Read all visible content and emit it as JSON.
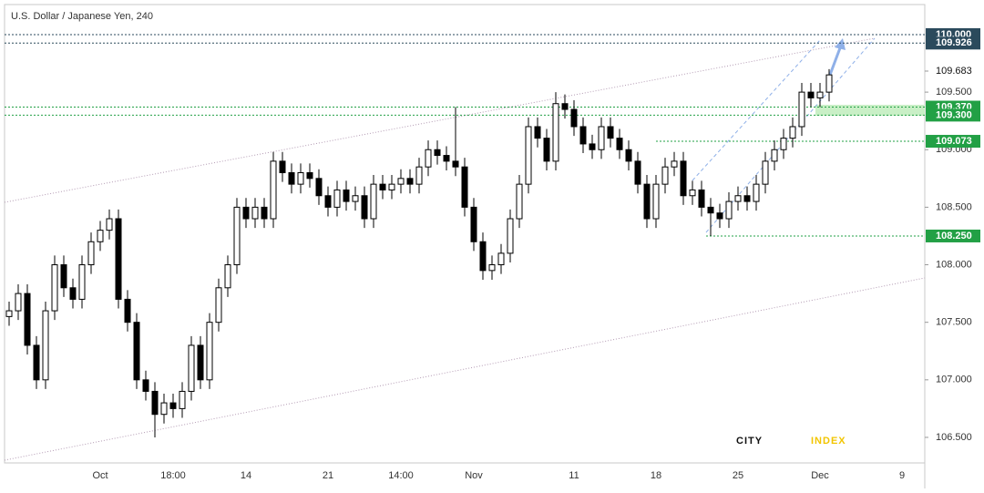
{
  "chart_data": {
    "type": "candlestick",
    "title": "U.S. Dollar / Japanese Yen, 240",
    "logo": {
      "left": "CITY",
      "right": "INDEX"
    },
    "categories": [
      null,
      null,
      null,
      null,
      null,
      null,
      null,
      null,
      null,
      null,
      "Oct",
      null,
      null,
      null,
      null,
      null,
      null,
      null,
      "18:00",
      null,
      null,
      null,
      null,
      null,
      null,
      null,
      "14",
      null,
      null,
      null,
      null,
      null,
      null,
      null,
      null,
      "21",
      null,
      null,
      null,
      null,
      null,
      null,
      null,
      "14:00",
      null,
      null,
      null,
      null,
      null,
      null,
      null,
      "Nov",
      null,
      null,
      null,
      null,
      null,
      null,
      null,
      null,
      null,
      null,
      "11",
      null,
      null,
      null,
      null,
      null,
      null,
      null,
      null,
      "18",
      null,
      null,
      null,
      null,
      null,
      null,
      null,
      null,
      "25",
      null,
      null,
      null,
      null,
      null,
      null,
      null,
      null,
      "Dec",
      null,
      null,
      null,
      null,
      null,
      null,
      null,
      null,
      "9",
      null,
      null
    ],
    "open": [
      107.55,
      107.6,
      107.75,
      107.3,
      107.0,
      107.6,
      108.0,
      107.8,
      107.7,
      108.0,
      108.2,
      108.3,
      108.4,
      107.7,
      107.5,
      107.0,
      106.9,
      106.7,
      106.8,
      106.75,
      106.9,
      107.3,
      107.0,
      107.5,
      107.8,
      108.0,
      108.5,
      108.4,
      108.5,
      108.4,
      108.9,
      108.8,
      108.7,
      108.8,
      108.75,
      108.6,
      108.5,
      108.65,
      108.55,
      108.6,
      108.4,
      108.7,
      108.65,
      108.7,
      108.75,
      108.7,
      108.85,
      109.0,
      108.95,
      108.9,
      108.85,
      108.5,
      108.2,
      107.95,
      108.0,
      108.1,
      108.4,
      108.7,
      109.2,
      109.1,
      108.9,
      109.4,
      109.35,
      109.2,
      109.05,
      109.0,
      109.2,
      109.1,
      109.0,
      108.9,
      108.7,
      108.4,
      108.7,
      108.85,
      108.9,
      108.6,
      108.65,
      108.5,
      108.45,
      108.4,
      108.55,
      108.6,
      108.55,
      108.7,
      108.9,
      109.0,
      109.1,
      109.2,
      109.5,
      109.45,
      109.5,
      null,
      null,
      null,
      null,
      null,
      null,
      null,
      null,
      null,
      null
    ],
    "high": [
      107.68,
      107.83,
      107.83,
      107.38,
      107.68,
      108.08,
      108.08,
      107.88,
      108.08,
      108.28,
      108.38,
      108.48,
      108.48,
      107.78,
      107.58,
      107.08,
      106.98,
      106.88,
      106.88,
      106.98,
      107.38,
      107.38,
      107.58,
      107.88,
      108.08,
      108.58,
      108.58,
      108.58,
      108.58,
      108.98,
      108.98,
      108.88,
      108.88,
      108.88,
      108.83,
      108.68,
      108.73,
      108.73,
      108.68,
      108.68,
      108.78,
      108.78,
      108.78,
      108.83,
      108.83,
      108.93,
      109.08,
      109.08,
      109.03,
      109.37,
      108.93,
      108.58,
      108.28,
      108.08,
      108.18,
      108.48,
      108.78,
      109.28,
      109.28,
      109.18,
      109.5,
      109.48,
      109.43,
      109.28,
      109.13,
      109.28,
      109.28,
      109.18,
      109.08,
      108.98,
      108.78,
      108.78,
      108.93,
      108.98,
      108.98,
      108.73,
      108.73,
      108.58,
      108.53,
      108.63,
      108.68,
      108.68,
      108.78,
      108.98,
      109.08,
      109.18,
      109.28,
      109.58,
      109.58,
      109.58,
      109.7,
      null,
      null,
      null,
      null,
      null,
      null,
      null,
      null,
      null,
      null
    ],
    "low": [
      107.47,
      107.52,
      107.22,
      106.92,
      106.92,
      107.52,
      107.72,
      107.62,
      107.62,
      107.92,
      108.12,
      108.22,
      107.62,
      107.42,
      106.92,
      106.82,
      106.5,
      106.62,
      106.67,
      106.67,
      106.82,
      106.92,
      106.92,
      107.42,
      107.72,
      107.92,
      108.32,
      108.32,
      108.32,
      108.32,
      108.72,
      108.62,
      108.62,
      108.67,
      108.52,
      108.42,
      108.42,
      108.47,
      108.47,
      108.32,
      108.32,
      108.57,
      108.57,
      108.62,
      108.62,
      108.62,
      108.77,
      108.87,
      108.82,
      108.77,
      108.42,
      108.12,
      107.87,
      107.87,
      107.92,
      108.02,
      108.32,
      108.62,
      109.02,
      108.82,
      108.82,
      109.27,
      109.12,
      108.97,
      108.92,
      108.92,
      109.02,
      108.92,
      108.82,
      108.62,
      108.32,
      108.32,
      108.62,
      108.77,
      108.52,
      108.52,
      108.42,
      108.25,
      108.32,
      108.32,
      108.47,
      108.47,
      108.47,
      108.62,
      108.82,
      108.92,
      109.02,
      109.12,
      109.37,
      109.37,
      109.42,
      null,
      null,
      null,
      null,
      null,
      null,
      null,
      null,
      null,
      null
    ],
    "close": [
      107.6,
      107.75,
      107.3,
      107.0,
      107.6,
      108.0,
      107.8,
      107.7,
      108.0,
      108.2,
      108.3,
      108.4,
      107.7,
      107.5,
      107.0,
      106.9,
      106.7,
      106.8,
      106.75,
      106.9,
      107.3,
      107.0,
      107.5,
      107.8,
      108.0,
      108.5,
      108.4,
      108.5,
      108.4,
      108.9,
      108.8,
      108.7,
      108.8,
      108.75,
      108.6,
      108.5,
      108.65,
      108.55,
      108.6,
      108.4,
      108.7,
      108.65,
      108.7,
      108.75,
      108.7,
      108.85,
      109.0,
      108.95,
      108.9,
      108.85,
      108.5,
      108.2,
      107.95,
      108.0,
      108.1,
      108.4,
      108.7,
      109.2,
      109.1,
      108.9,
      109.4,
      109.35,
      109.2,
      109.05,
      109.0,
      109.2,
      109.1,
      109.0,
      108.9,
      108.7,
      108.4,
      108.7,
      108.85,
      108.9,
      108.6,
      108.65,
      108.5,
      108.45,
      108.4,
      108.55,
      108.6,
      108.55,
      108.7,
      108.9,
      109.0,
      109.1,
      109.2,
      109.5,
      109.45,
      109.5,
      109.65,
      null,
      null,
      null,
      null,
      null,
      null,
      null,
      null,
      null,
      null
    ],
    "up_color": "#ffffff",
    "down_color": "#000000",
    "ylim": [
      106.278,
      110.261
    ],
    "yticks": [
      {
        "value": 106.5,
        "label": "106.500"
      },
      {
        "value": 107,
        "label": "107.000"
      },
      {
        "value": 107.5,
        "label": "107.500"
      },
      {
        "value": 108,
        "label": "108.000"
      },
      {
        "value": 108.5,
        "label": "108.500"
      },
      {
        "value": 109,
        "label": "109.000"
      },
      {
        "value": 109.5,
        "label": "109.500"
      }
    ],
    "levels": [
      {
        "value": 110,
        "label": "110.000",
        "color": "#2b4a5c"
      },
      {
        "value": 109.926,
        "label": "109.926",
        "color": "#2b4a5c"
      },
      {
        "value": 109.683,
        "label": "109.683",
        "color": null
      },
      {
        "value": 109.37,
        "label": "109.370",
        "color": "#22a045"
      },
      {
        "value": 109.3,
        "label": "109.300",
        "color": "#22a045"
      },
      {
        "value": 109.073,
        "label": "109.073",
        "color": "#22a045"
      },
      {
        "value": 108.25,
        "label": "108.250",
        "color": "#22a045"
      }
    ]
  }
}
